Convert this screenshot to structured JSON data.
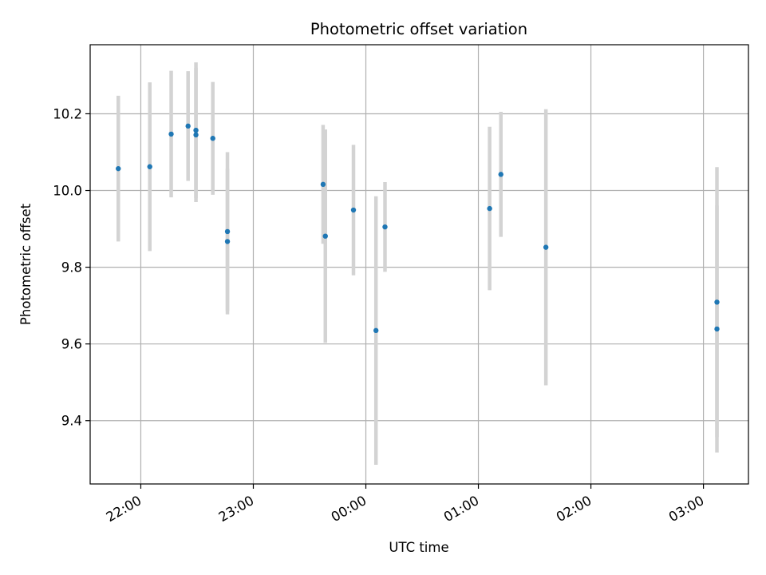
{
  "chart_data": {
    "type": "scatter",
    "title": "Photometric offset variation",
    "xlabel": "UTC time",
    "ylabel": "Photometric offset",
    "x_tick_labels": [
      "22:00",
      "23:00",
      "00:00",
      "01:00",
      "02:00",
      "03:00"
    ],
    "y_tick_labels": [
      "9.4",
      "9.6",
      "9.8",
      "10.0",
      "10.2"
    ],
    "x_ticks_hours": [
      22,
      23,
      24,
      25,
      26,
      27
    ],
    "y_ticks": [
      9.4,
      9.6,
      9.8,
      10.0,
      10.2
    ],
    "xlim_hours": [
      21.55,
      27.4
    ],
    "ylim": [
      9.235,
      10.38
    ],
    "grid": true,
    "marker_color": "#1f77b4",
    "errorbar_color": "#d3d3d3",
    "points": [
      {
        "time": "21:48",
        "t": 21.8,
        "y": 10.057,
        "err": 0.19
      },
      {
        "time": "22:05",
        "t": 22.08,
        "y": 10.062,
        "err": 0.22
      },
      {
        "time": "22:16",
        "t": 22.27,
        "y": 10.147,
        "err": 0.165
      },
      {
        "time": "22:25",
        "t": 22.42,
        "y": 10.168,
        "err": 0.143
      },
      {
        "time": "22:29",
        "t": 22.49,
        "y": 10.157,
        "err": 0.177
      },
      {
        "time": "22:29",
        "t": 22.49,
        "y": 10.145,
        "err": 0.175
      },
      {
        "time": "22:38",
        "t": 22.64,
        "y": 10.136,
        "err": 0.147
      },
      {
        "time": "22:46",
        "t": 22.77,
        "y": 9.893,
        "err": 0.207
      },
      {
        "time": "22:46",
        "t": 22.77,
        "y": 9.867,
        "err": 0.19
      },
      {
        "time": "23:37",
        "t": 23.62,
        "y": 10.016,
        "err": 0.155
      },
      {
        "time": "23:38",
        "t": 23.64,
        "y": 9.881,
        "err": 0.278
      },
      {
        "time": "23:53",
        "t": 23.89,
        "y": 9.949,
        "err": 0.17
      },
      {
        "time": "00:05",
        "t": 24.09,
        "y": 9.635,
        "err": 0.35
      },
      {
        "time": "00:10",
        "t": 24.17,
        "y": 9.905,
        "err": 0.117
      },
      {
        "time": "01:06",
        "t": 25.1,
        "y": 9.953,
        "err": 0.213
      },
      {
        "time": "01:12",
        "t": 25.2,
        "y": 10.042,
        "err": 0.163
      },
      {
        "time": "01:36",
        "t": 25.6,
        "y": 9.852,
        "err": 0.36
      },
      {
        "time": "03:07",
        "t": 27.12,
        "y": 9.709,
        "err": 0.352
      },
      {
        "time": "03:07",
        "t": 27.12,
        "y": 9.639,
        "err": 0.322
      }
    ]
  }
}
